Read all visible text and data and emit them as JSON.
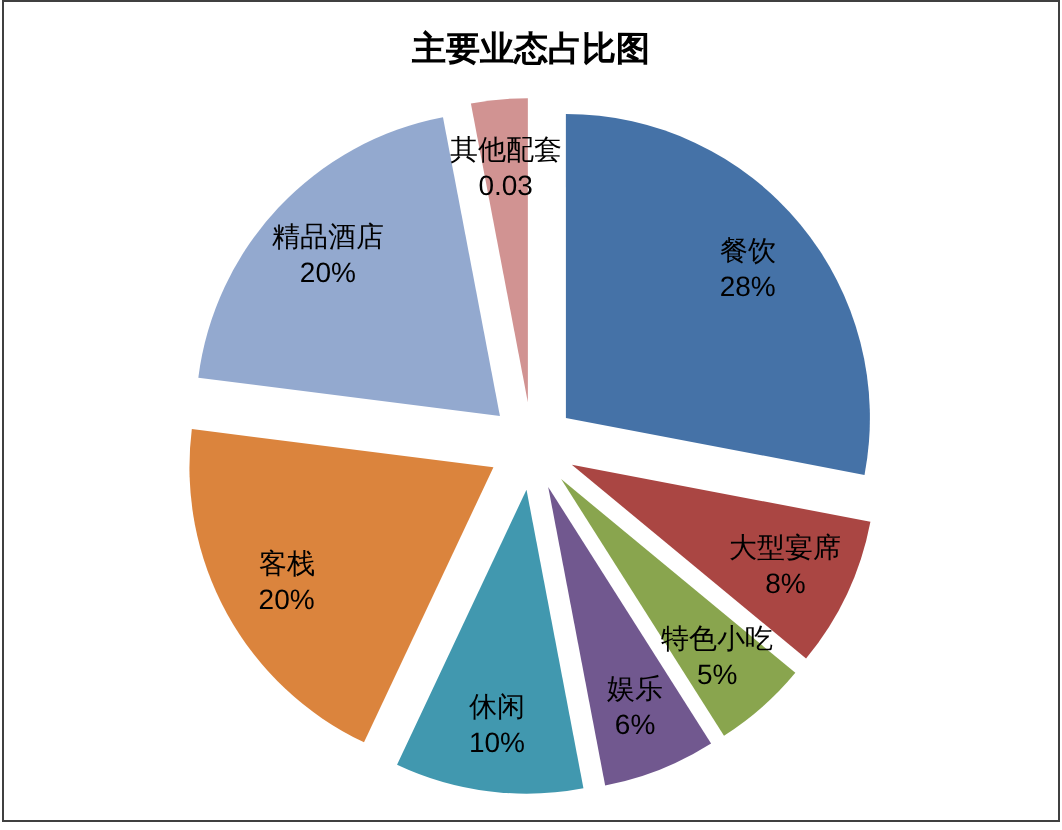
{
  "chart_data": {
    "type": "pie",
    "title": "主要业态占比图",
    "categories": [
      "餐饮",
      "大型宴席",
      "特色小吃",
      "娱乐",
      "休闲",
      "客栈",
      "精品酒店",
      "其他配套"
    ],
    "values": [
      0.28,
      0.08,
      0.05,
      0.06,
      0.1,
      0.2,
      0.2,
      0.03
    ],
    "value_labels": [
      "28%",
      "8%",
      "5%",
      "6%",
      "10%",
      "20%",
      "20%",
      "0.03"
    ],
    "colors": [
      "#4572a7",
      "#aa4643",
      "#89a54e",
      "#71588f",
      "#4198af",
      "#db843d",
      "#93a9cf",
      "#d19392"
    ]
  }
}
